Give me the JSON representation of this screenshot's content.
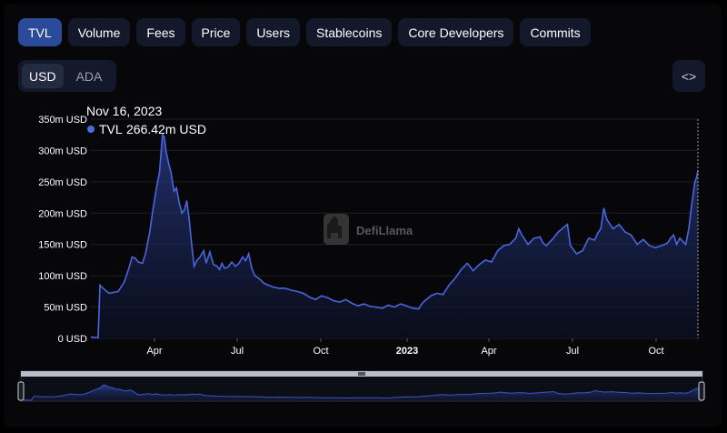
{
  "tabs": [
    {
      "label": "TVL",
      "active": true
    },
    {
      "label": "Volume",
      "active": false
    },
    {
      "label": "Fees",
      "active": false
    },
    {
      "label": "Price",
      "active": false
    },
    {
      "label": "Users",
      "active": false
    },
    {
      "label": "Stablecoins",
      "active": false
    },
    {
      "label": "Core Developers",
      "active": false
    },
    {
      "label": "Commits",
      "active": false
    }
  ],
  "denomination": {
    "options": [
      {
        "label": "USD",
        "active": true
      },
      {
        "label": "ADA",
        "active": false
      }
    ]
  },
  "embed_icon": "code-brackets-icon",
  "watermark": {
    "text": "DefiLlama",
    "icon": "llama-logo"
  },
  "tooltip": {
    "date": "Nov 16, 2023",
    "series": "TVL",
    "value": "266.42m USD",
    "color": "#4e6be0"
  },
  "colors": {
    "line": "#4a66df",
    "accent": "#2a4a9a",
    "background": "#070709"
  },
  "chart_data": {
    "type": "area",
    "series": [
      {
        "name": "TVL"
      }
    ],
    "ylim": [
      0,
      350
    ],
    "yticks": [
      "0 USD",
      "50m USD",
      "100m USD",
      "150m USD",
      "200m USD",
      "250m USD",
      "300m USD",
      "350m USD"
    ],
    "xticks": [
      "Apr",
      "Jul",
      "Oct",
      "2023",
      "Apr",
      "Jul",
      "Oct"
    ],
    "grid": true,
    "points": [
      [
        0,
        2
      ],
      [
        0.012,
        1
      ],
      [
        0.015,
        85
      ],
      [
        0.02,
        80
      ],
      [
        0.03,
        72
      ],
      [
        0.045,
        75
      ],
      [
        0.055,
        90
      ],
      [
        0.062,
        110
      ],
      [
        0.068,
        130
      ],
      [
        0.073,
        128
      ],
      [
        0.078,
        122
      ],
      [
        0.085,
        120
      ],
      [
        0.09,
        135
      ],
      [
        0.097,
        170
      ],
      [
        0.103,
        210
      ],
      [
        0.108,
        240
      ],
      [
        0.113,
        265
      ],
      [
        0.118,
        325
      ],
      [
        0.121,
        322
      ],
      [
        0.124,
        298
      ],
      [
        0.128,
        280
      ],
      [
        0.132,
        265
      ],
      [
        0.137,
        235
      ],
      [
        0.141,
        240
      ],
      [
        0.146,
        215
      ],
      [
        0.15,
        200
      ],
      [
        0.154,
        205
      ],
      [
        0.158,
        220
      ],
      [
        0.162,
        190
      ],
      [
        0.166,
        150
      ],
      [
        0.17,
        115
      ],
      [
        0.175,
        125
      ],
      [
        0.18,
        130
      ],
      [
        0.186,
        140
      ],
      [
        0.19,
        120
      ],
      [
        0.196,
        138
      ],
      [
        0.202,
        118
      ],
      [
        0.208,
        115
      ],
      [
        0.212,
        110
      ],
      [
        0.216,
        120
      ],
      [
        0.22,
        112
      ],
      [
        0.226,
        114
      ],
      [
        0.232,
        122
      ],
      [
        0.238,
        115
      ],
      [
        0.244,
        120
      ],
      [
        0.25,
        130
      ],
      [
        0.255,
        124
      ],
      [
        0.26,
        135
      ],
      [
        0.265,
        112
      ],
      [
        0.27,
        100
      ],
      [
        0.278,
        95
      ],
      [
        0.285,
        88
      ],
      [
        0.292,
        85
      ],
      [
        0.3,
        82
      ],
      [
        0.31,
        80
      ],
      [
        0.32,
        80
      ],
      [
        0.33,
        77
      ],
      [
        0.34,
        75
      ],
      [
        0.35,
        72
      ],
      [
        0.36,
        66
      ],
      [
        0.37,
        62
      ],
      [
        0.38,
        68
      ],
      [
        0.39,
        65
      ],
      [
        0.4,
        60
      ],
      [
        0.41,
        58
      ],
      [
        0.42,
        62
      ],
      [
        0.43,
        56
      ],
      [
        0.44,
        52
      ],
      [
        0.45,
        55
      ],
      [
        0.46,
        51
      ],
      [
        0.47,
        50
      ],
      [
        0.48,
        48
      ],
      [
        0.49,
        53
      ],
      [
        0.5,
        50
      ],
      [
        0.51,
        55
      ],
      [
        0.52,
        52
      ],
      [
        0.53,
        48
      ],
      [
        0.54,
        47
      ],
      [
        0.545,
        55
      ],
      [
        0.55,
        60
      ],
      [
        0.56,
        68
      ],
      [
        0.57,
        72
      ],
      [
        0.58,
        70
      ],
      [
        0.59,
        85
      ],
      [
        0.6,
        96
      ],
      [
        0.61,
        110
      ],
      [
        0.62,
        120
      ],
      [
        0.63,
        108
      ],
      [
        0.64,
        118
      ],
      [
        0.65,
        125
      ],
      [
        0.66,
        122
      ],
      [
        0.67,
        140
      ],
      [
        0.68,
        148
      ],
      [
        0.69,
        150
      ],
      [
        0.7,
        160
      ],
      [
        0.705,
        175
      ],
      [
        0.71,
        165
      ],
      [
        0.72,
        150
      ],
      [
        0.73,
        160
      ],
      [
        0.74,
        162
      ],
      [
        0.745,
        152
      ],
      [
        0.75,
        148
      ],
      [
        0.76,
        158
      ],
      [
        0.77,
        170
      ],
      [
        0.78,
        178
      ],
      [
        0.785,
        182
      ],
      [
        0.79,
        148
      ],
      [
        0.8,
        135
      ],
      [
        0.81,
        140
      ],
      [
        0.82,
        160
      ],
      [
        0.83,
        157
      ],
      [
        0.835,
        168
      ],
      [
        0.84,
        175
      ],
      [
        0.845,
        208
      ],
      [
        0.85,
        190
      ],
      [
        0.86,
        175
      ],
      [
        0.87,
        182
      ],
      [
        0.88,
        170
      ],
      [
        0.89,
        165
      ],
      [
        0.9,
        150
      ],
      [
        0.91,
        158
      ],
      [
        0.92,
        148
      ],
      [
        0.93,
        145
      ],
      [
        0.94,
        148
      ],
      [
        0.95,
        152
      ],
      [
        0.955,
        160
      ],
      [
        0.96,
        165
      ],
      [
        0.965,
        150
      ],
      [
        0.97,
        160
      ],
      [
        0.975,
        155
      ],
      [
        0.98,
        150
      ],
      [
        0.985,
        175
      ],
      [
        0.99,
        215
      ],
      [
        0.995,
        250
      ],
      [
        0.998,
        258
      ],
      [
        1.0,
        268
      ]
    ]
  }
}
